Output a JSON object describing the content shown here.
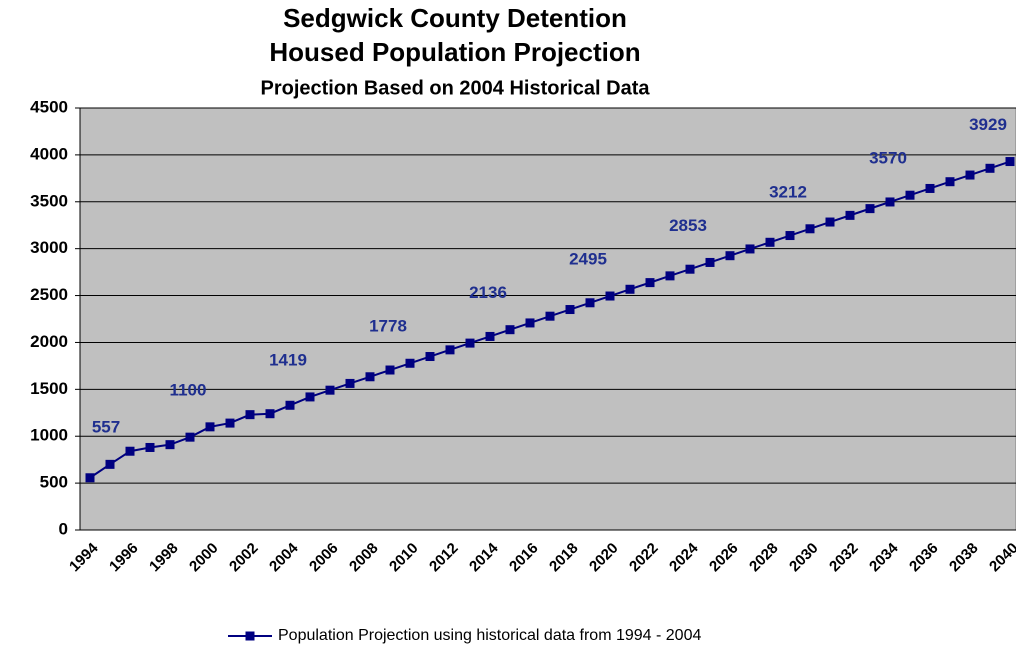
{
  "chart_data": {
    "type": "line",
    "title": [
      "Sedgwick County Detention",
      "Housed Population Projection"
    ],
    "subtitle": "Projection Based on 2004 Historical Data",
    "categories": [
      "1994",
      null,
      "1996",
      null,
      "1998",
      null,
      "2000",
      null,
      "2002",
      null,
      "2004",
      null,
      "2006",
      null,
      "2008",
      null,
      "2010",
      null,
      "2012",
      null,
      "2014",
      null,
      "2016",
      null,
      "2018",
      null,
      "2020",
      null,
      "2022",
      null,
      "2024",
      null,
      "2026",
      null,
      "2028",
      null,
      "2030",
      null,
      "2032",
      null,
      "2034",
      null,
      "2036",
      null,
      "2038",
      null,
      "2040"
    ],
    "series": [
      {
        "name": "Population Projection using historical data from 1994 - 2004",
        "color": "#000080",
        "values": [
          557,
          700,
          840,
          880,
          910,
          990,
          1100,
          1140,
          1230,
          1240,
          1330,
          1419,
          1491,
          1563,
          1634,
          1706,
          1778,
          1850,
          1921,
          1993,
          2064,
          2136,
          2208,
          2280,
          2351,
          2423,
          2495,
          2567,
          2638,
          2710,
          2781,
          2853,
          2925,
          2997,
          3068,
          3140,
          3212,
          3284,
          3355,
          3427,
          3498,
          3570,
          3642,
          3714,
          3785,
          3857,
          3929
        ],
        "value_labels": [
          "557",
          null,
          null,
          null,
          null,
          null,
          "1100",
          null,
          null,
          null,
          null,
          "1419",
          null,
          null,
          null,
          null,
          "1778",
          null,
          null,
          null,
          null,
          "2136",
          null,
          null,
          null,
          null,
          "2495",
          null,
          null,
          null,
          null,
          "2853",
          null,
          null,
          null,
          null,
          "3212",
          null,
          null,
          null,
          null,
          "3570",
          null,
          null,
          null,
          null,
          "3929"
        ]
      }
    ],
    "ylim": [
      0,
      4500
    ],
    "yticks": [
      0,
      500,
      1000,
      1500,
      2000,
      2500,
      3000,
      3500,
      4000,
      4500
    ],
    "grid": true,
    "plot_background": "#c0c0c0",
    "legend": "bottom"
  }
}
